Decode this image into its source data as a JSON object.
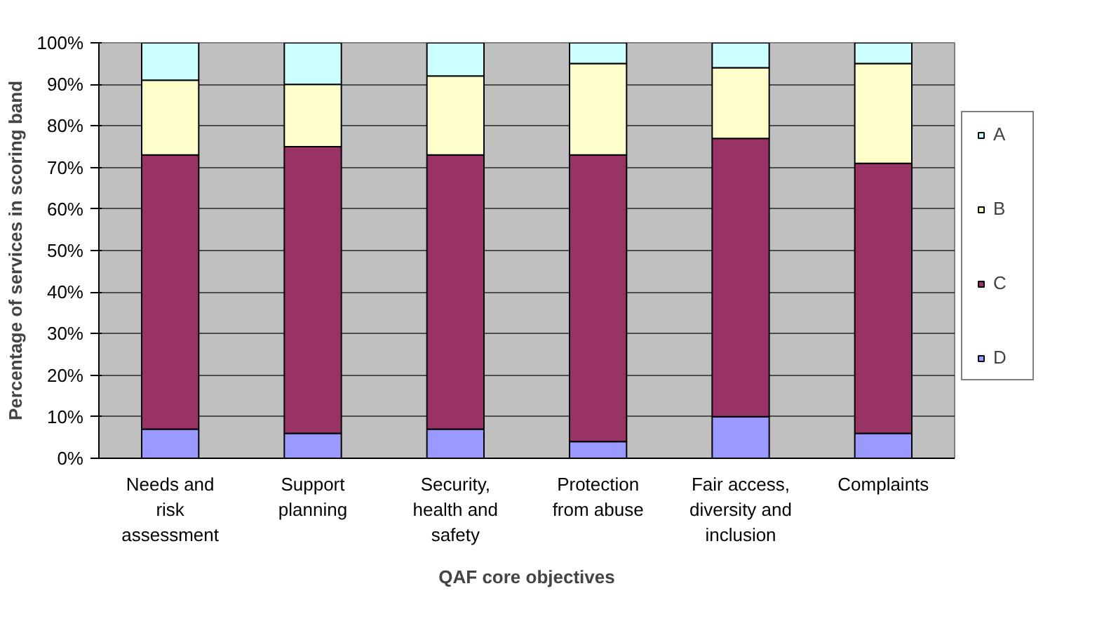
{
  "chart_data": {
    "type": "bar",
    "stacked": true,
    "xlabel": "QAF core objectives",
    "ylabel": "Percentage of services in scoring band",
    "categories": [
      "Needs and risk assessment",
      "Support planning",
      "Security, health and safety",
      "Protection from abuse",
      "Fair access, diversity and inclusion",
      "Complaints"
    ],
    "series": [
      {
        "name": "D",
        "color": "#9999ff",
        "values": [
          7,
          6,
          7,
          4,
          10,
          6
        ]
      },
      {
        "name": "C",
        "color": "#993366",
        "values": [
          66,
          69,
          66,
          69,
          67,
          65
        ]
      },
      {
        "name": "B",
        "color": "#ffffcc",
        "values": [
          18,
          15,
          19,
          22,
          17,
          24
        ]
      },
      {
        "name": "A",
        "color": "#ccffff",
        "values": [
          9,
          10,
          8,
          5,
          6,
          5
        ]
      }
    ],
    "ylim": [
      0,
      100
    ],
    "yticks": [
      {
        "value": 0,
        "label": "0%"
      },
      {
        "value": 10,
        "label": "10%"
      },
      {
        "value": 20,
        "label": "20%"
      },
      {
        "value": 30,
        "label": "30%"
      },
      {
        "value": 40,
        "label": "40%"
      },
      {
        "value": 50,
        "label": "50%"
      },
      {
        "value": 60,
        "label": "60%"
      },
      {
        "value": 70,
        "label": "70%"
      },
      {
        "value": 80,
        "label": "80%"
      },
      {
        "value": 90,
        "label": "90%"
      },
      {
        "value": 100,
        "label": "100%"
      }
    ],
    "grid": "y",
    "legend": "right"
  }
}
